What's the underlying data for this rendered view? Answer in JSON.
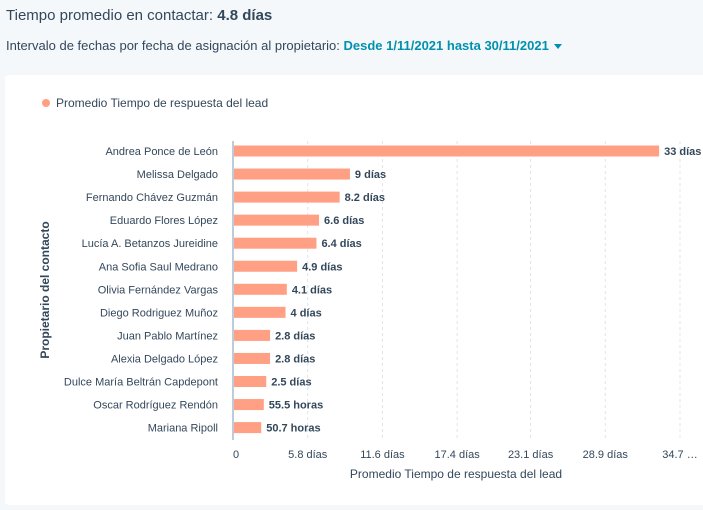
{
  "header": {
    "title_label": "Tiempo promedio en contactar:",
    "title_value": "4.8 días",
    "filter_label": "Intervalo de fechas por fecha de asignación al propietario:",
    "filter_value": "Desde 1/11/2021 hasta 30/11/2021"
  },
  "colors": {
    "bar": "#ff9f84",
    "link": "#0091ae",
    "text": "#33475b"
  },
  "chart_data": {
    "type": "bar",
    "orientation": "horizontal",
    "legend": [
      "Promedio Tiempo de respuesta del lead"
    ],
    "legend_position": "top-left",
    "xlabel": "Promedio Tiempo de respuesta del lead",
    "ylabel": "Propietario del contacto",
    "xlim": [
      0,
      34.7
    ],
    "x_ticks": [
      0,
      5.8,
      11.6,
      17.4,
      23.1,
      28.9,
      34.7
    ],
    "x_tick_labels": [
      "0",
      "5.8 días",
      "11.6 días",
      "17.4 días",
      "23.1 días",
      "28.9 días",
      "34.7 …"
    ],
    "grid": true,
    "categories": [
      "Andrea Ponce de León",
      "Melissa Delgado",
      "Fernando Chávez Guzmán",
      "Eduardo Flores López",
      "Lucía A. Betanzos Jureidine",
      "Ana Sofia Saul Medrano",
      "Olivia Fernández Vargas",
      "Diego Rodriguez Muñoz",
      "Juan Pablo Martínez",
      "Alexia Delgado López",
      "Dulce María Beltrán Capdepont",
      "Oscar Rodríguez Rendón",
      "Mariana Ripoll"
    ],
    "values": [
      33,
      9,
      8.2,
      6.6,
      6.4,
      4.9,
      4.1,
      4,
      2.8,
      2.8,
      2.5,
      2.3125,
      2.1125
    ],
    "value_labels": [
      "33 días",
      "9 días",
      "8.2 días",
      "6.6 días",
      "6.4 días",
      "4.9 días",
      "4.1 días",
      "4 días",
      "2.8 días",
      "2.8 días",
      "2.5 días",
      "55.5 horas",
      "50.7 horas"
    ],
    "unit": "días"
  }
}
